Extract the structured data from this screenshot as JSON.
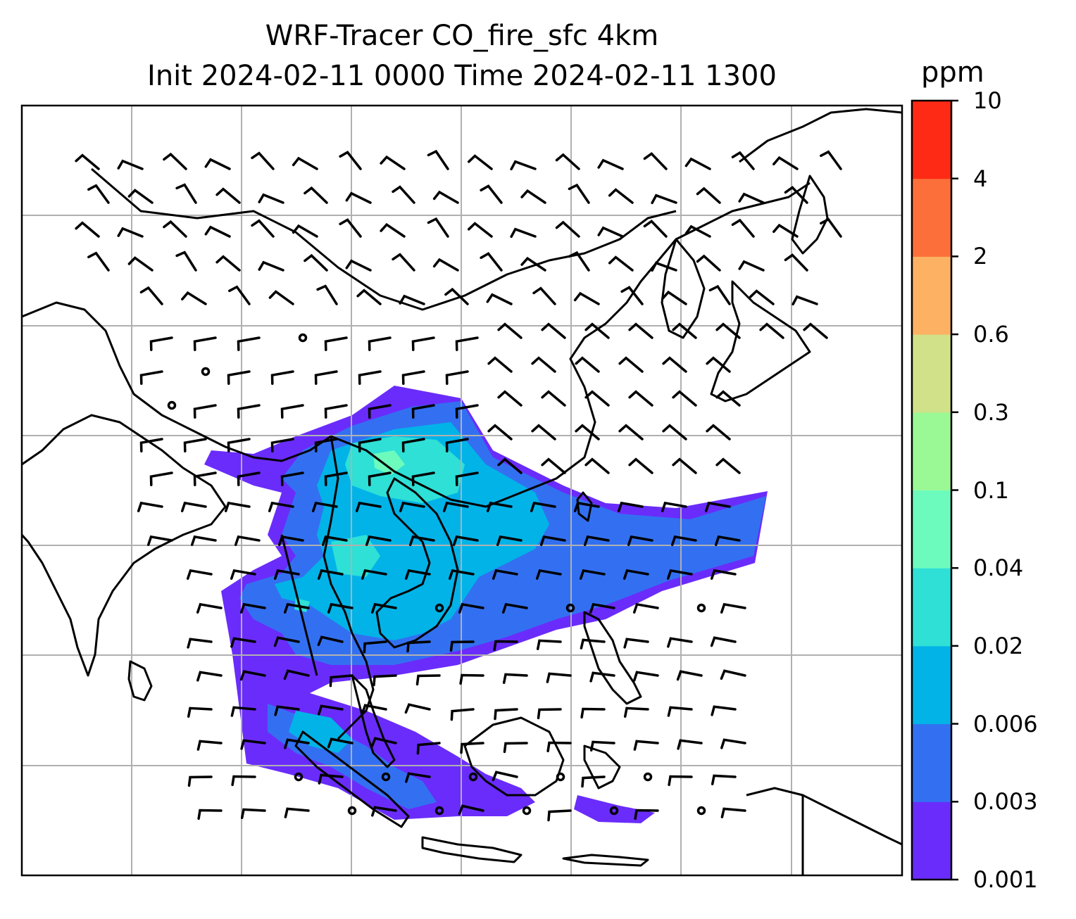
{
  "title": {
    "line1": "WRF-Tracer CO_fire_sfc 4km",
    "line2": "Init 2024-02-11 0000 Time 2024-02-11 1300"
  },
  "colorbar": {
    "unit": "ppm",
    "levels": [
      "0.001",
      "0.003",
      "0.006",
      "0.02",
      "0.04",
      "0.1",
      "0.3",
      "0.6",
      "2",
      "4",
      "10"
    ],
    "colors": [
      "#6a2cfb",
      "#3370f1",
      "#02b3e8",
      "#2ee0d6",
      "#6cfbbd",
      "#9af895",
      "#d0e189",
      "#fdb163",
      "#fd6f3a",
      "#fe2a16"
    ]
  },
  "map": {
    "variable": "CO_fire_sfc",
    "grid": "on",
    "land_outline_color": "#000000",
    "grid_color": "#b0b0b0",
    "wind": "barbs"
  }
}
